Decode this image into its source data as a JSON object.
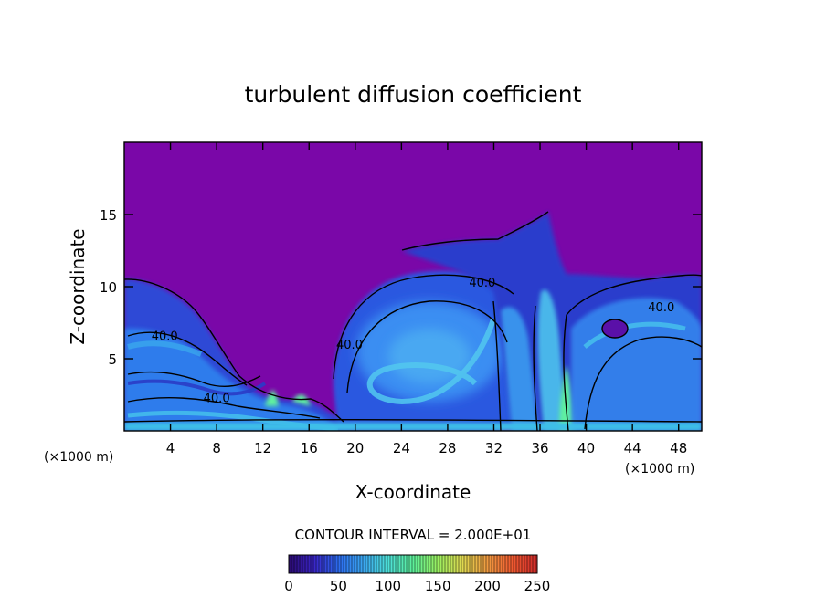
{
  "chart_data": {
    "type": "heatmap",
    "title": "turbulent diffusion coefficient",
    "xlabel": "X-coordinate",
    "ylabel": "Z-coordinate",
    "x_units_left": "(×1000 m)",
    "x_units_right": "(×1000 m)",
    "xlim": [
      0,
      50
    ],
    "ylim": [
      0,
      20
    ],
    "x_ticks": [
      4,
      8,
      12,
      16,
      20,
      24,
      28,
      32,
      36,
      40,
      44,
      48
    ],
    "y_ticks": [
      5,
      10,
      15
    ],
    "contour_interval_text": "CONTOUR INTERVAL = 2.000E+01",
    "contour_labels": [
      {
        "text": "40.0",
        "x": 3.5,
        "z": 6.3
      },
      {
        "text": "40.0",
        "x": 8.0,
        "z": 2.0
      },
      {
        "text": "40.0",
        "x": 19.5,
        "z": 5.7
      },
      {
        "text": "40.0",
        "x": 31.0,
        "z": 10.0
      },
      {
        "text": "40.0",
        "x": 46.5,
        "z": 8.3
      }
    ],
    "colorbar": {
      "min": 0,
      "max": 250,
      "ticks": [
        0,
        50,
        100,
        150,
        200,
        250
      ],
      "colors": [
        "#2a0a6e",
        "#3a24c8",
        "#2c6cf0",
        "#3aa6f0",
        "#4de0d8",
        "#5cf09a",
        "#9af060",
        "#e0d850",
        "#f09a40",
        "#f05a30",
        "#d02a2a"
      ]
    },
    "colors": {
      "background_field": "#7a07a8",
      "low": "#3a3cd8",
      "mid": "#2e86f0",
      "high": "#4fd0e8",
      "peak": "#5ef0a0"
    }
  }
}
